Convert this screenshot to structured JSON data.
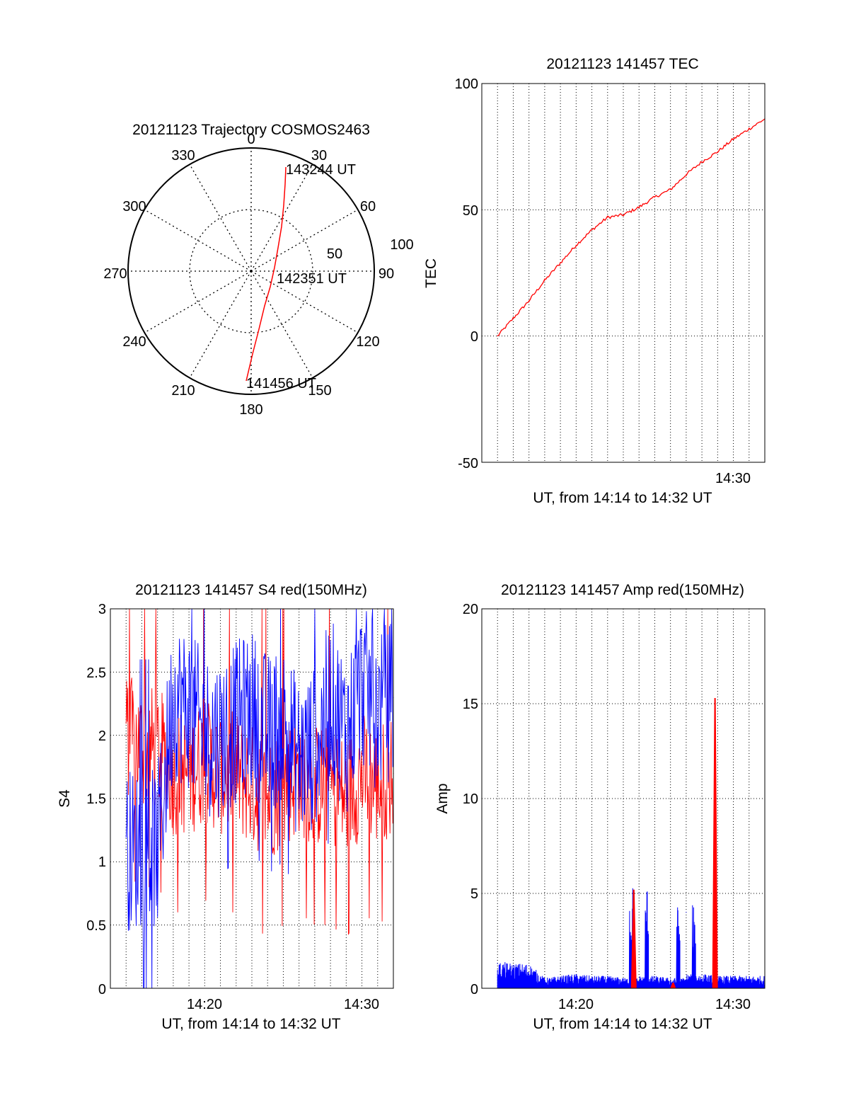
{
  "polar": {
    "title": "20121123 Trajectory COSMOS2463",
    "az_labels": [
      "0",
      "30",
      "60",
      "90",
      "120",
      "150",
      "180",
      "210",
      "240",
      "270",
      "300",
      "330"
    ],
    "ring_labels": [
      "50",
      "100"
    ],
    "time_labels": [
      "143244 UT",
      "142351 UT",
      "141456 UT"
    ]
  },
  "chart_data": [
    {
      "type": "line",
      "title": "20121123 141457 TEC",
      "xlabel": "UT, from 14:14 to 14:32 UT",
      "ylabel": "TEC",
      "xlim": [
        "14:14",
        "14:32"
      ],
      "ylim": [
        -50,
        100
      ],
      "yticks": [
        "100",
        "50",
        "0",
        "-50"
      ],
      "xticks": [
        "14:30"
      ],
      "series": [
        {
          "color": "#ff0000",
          "x": [
            "14:15",
            "14:16",
            "14:17",
            "14:18",
            "14:19",
            "14:20",
            "14:21",
            "14:22",
            "14:23",
            "14:24",
            "14:25",
            "14:26",
            "14:27",
            "14:28",
            "14:29",
            "14:30",
            "14:31",
            "14:32"
          ],
          "values": [
            0,
            7,
            14,
            22,
            29,
            36,
            42,
            47,
            48,
            51,
            55,
            58,
            64,
            69,
            73,
            78,
            82,
            86
          ]
        }
      ]
    },
    {
      "type": "line",
      "title": "20121123 141457 S4 red(150MHz)",
      "xlabel": "UT, from 14:14 to 14:32 UT",
      "ylabel": "S4",
      "xlim": [
        "14:14",
        "14:32"
      ],
      "ylim": [
        0,
        3
      ],
      "yticks": [
        "3",
        "2.5",
        "2",
        "1.5",
        "1",
        "0.5",
        "0"
      ],
      "xticks": [
        "14:20",
        "14:30"
      ],
      "series": [
        {
          "color": "#ff0000",
          "x": [
            "14:15",
            "14:16",
            "14:17",
            "14:18",
            "14:19",
            "14:20",
            "14:21",
            "14:22",
            "14:23",
            "14:24",
            "14:25",
            "14:26",
            "14:27",
            "14:28",
            "14:29",
            "14:30",
            "14:31",
            "14:32"
          ],
          "values": [
            2.0,
            1.9,
            1.9,
            1.7,
            1.7,
            1.8,
            1.7,
            1.7,
            1.6,
            1.5,
            1.6,
            1.7,
            1.6,
            1.6,
            1.5,
            1.7,
            1.6,
            1.7
          ]
        },
        {
          "color": "#0000ff",
          "x": [
            "14:15",
            "14:16",
            "14:17",
            "14:18",
            "14:19",
            "14:20",
            "14:21",
            "14:22",
            "14:23",
            "14:24",
            "14:25",
            "14:26",
            "14:27",
            "14:28",
            "14:29",
            "14:30",
            "14:31",
            "14:32"
          ],
          "values": [
            1.1,
            1.1,
            1.1,
            2.3,
            2.2,
            2.0,
            2.0,
            2.1,
            2.2,
            2.0,
            2.1,
            1.8,
            1.9,
            2.3,
            2.0,
            2.4,
            2.2,
            2.3
          ]
        }
      ]
    },
    {
      "type": "line",
      "title": "20121123 141457 Amp red(150MHz)",
      "xlabel": "UT, from 14:14 to 14:32 UT",
      "ylabel": "Amp",
      "xlim": [
        "14:14",
        "14:32"
      ],
      "ylim": [
        0,
        20
      ],
      "yticks": [
        "20",
        "15",
        "10",
        "5",
        "0"
      ],
      "xticks": [
        "14:20",
        "14:30"
      ],
      "series": [
        {
          "color": "#0000ff",
          "x": [
            "14:15",
            "14:16",
            "14:17",
            "14:18",
            "14:19",
            "14:20",
            "14:21",
            "14:22",
            "14:23",
            "14:24",
            "14:25",
            "14:26",
            "14:27",
            "14:28",
            "14:29",
            "14:30",
            "14:31",
            "14:32"
          ],
          "values": [
            1.3,
            1.2,
            1.2,
            0.5,
            0.6,
            0.7,
            0.6,
            0.6,
            0.5,
            5.0,
            0.6,
            0.5,
            4.0,
            0.7,
            0.6,
            0.6,
            0.6,
            0.6
          ]
        },
        {
          "color": "#ff0000",
          "x": [
            "14:23:40",
            "14:26:10",
            "14:28:50"
          ],
          "values": [
            5.2,
            0.3,
            15.3
          ]
        }
      ]
    }
  ]
}
